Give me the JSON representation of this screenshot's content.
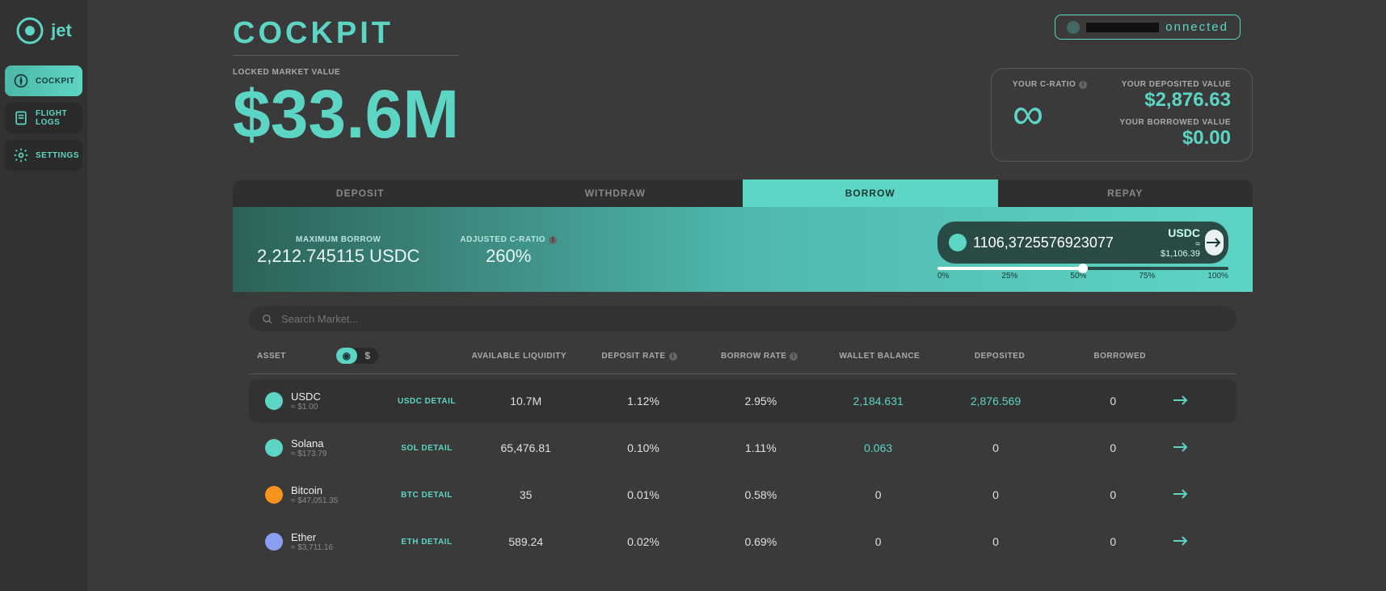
{
  "brand": "jet",
  "nav": {
    "cockpit": "COCKPIT",
    "flight_logs_l1": "FLIGHT",
    "flight_logs_l2": "LOGS",
    "settings": "SETTINGS"
  },
  "page_title": "Cockpit",
  "wallet_status": "onnected",
  "locked": {
    "label": "LOCKED MARKET VALUE",
    "value": "$33.6M"
  },
  "ratio": {
    "cratio_label": "YOUR C-RATIO",
    "infinity": "∞",
    "dep_label": "YOUR DEPOSITED VALUE",
    "dep_value": "$2,876.63",
    "bor_label": "YOUR BORROWED VALUE",
    "bor_value": "$0.00"
  },
  "tabs": {
    "deposit": "DEPOSIT",
    "withdraw": "WITHDRAW",
    "borrow": "BORROW",
    "repay": "REPAY"
  },
  "panel": {
    "max_label": "MAXIMUM BORROW",
    "max_value": "2,212.745115 USDC",
    "adj_label": "ADJUSTED C-RATIO",
    "adj_value": "260%",
    "input_value": "1106,3725576923077",
    "currency": "USDC",
    "approx": "≈ $1,106.39",
    "slider": {
      "p0": "0%",
      "p25": "25%",
      "p50": "50%",
      "p75": "75%",
      "p100": "100%"
    }
  },
  "search_placeholder": "Search Market...",
  "cols": {
    "asset": "ASSET",
    "liq": "AVAILABLE LIQUIDITY",
    "dep_rate": "DEPOSIT RATE",
    "bor_rate": "BORROW RATE",
    "wallet": "WALLET BALANCE",
    "deposited": "DEPOSITED",
    "borrowed": "BORROWED"
  },
  "currency_symbol": "$",
  "rows": [
    {
      "name": "USDC",
      "sub": "≈ $1.00",
      "detail": "USDC DETAIL",
      "liq": "10.7M",
      "dep": "1.12%",
      "bor": "2.95%",
      "wallet": "2,184.631",
      "deposited": "2,876.569",
      "borrowed": "0",
      "icon_bg": "#5dd5c4",
      "wallet_hl": true,
      "dep_hl": true,
      "selected": true
    },
    {
      "name": "Solana",
      "sub": "≈ $173.79",
      "detail": "SOL DETAIL",
      "liq": "65,476.81",
      "dep": "0.10%",
      "bor": "1.11%",
      "wallet": "0.063",
      "deposited": "0",
      "borrowed": "0",
      "icon_bg": "#5dd5c4",
      "wallet_hl": true
    },
    {
      "name": "Bitcoin",
      "sub": "≈ $47,051.35",
      "detail": "BTC DETAIL",
      "liq": "35",
      "dep": "0.01%",
      "bor": "0.58%",
      "wallet": "0",
      "deposited": "0",
      "borrowed": "0",
      "icon_bg": "#f7931a"
    },
    {
      "name": "Ether",
      "sub": "≈ $3,711.16",
      "detail": "ETH DETAIL",
      "liq": "589.24",
      "dep": "0.02%",
      "bor": "0.69%",
      "wallet": "0",
      "deposited": "0",
      "borrowed": "0",
      "icon_bg": "#8a9ff2"
    }
  ]
}
